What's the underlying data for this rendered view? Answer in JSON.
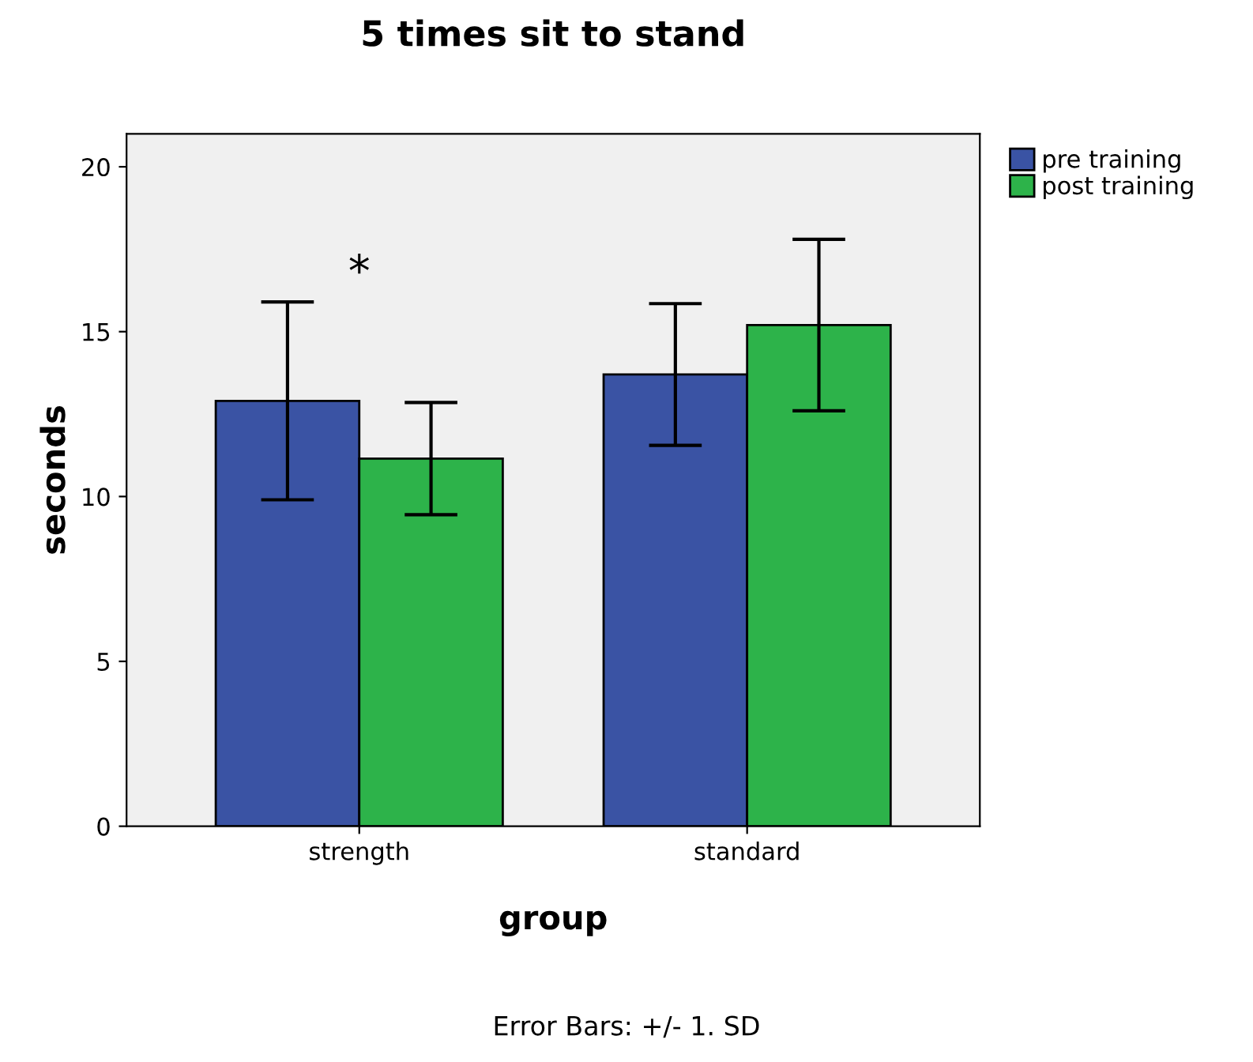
{
  "chart_data": {
    "type": "bar",
    "title": "5 times sit to stand",
    "xlabel": "group",
    "ylabel": "seconds",
    "categories": [
      "strength",
      "standard"
    ],
    "series": [
      {
        "name": "pre training",
        "color": "#3a53a4",
        "values": [
          12.9,
          13.7
        ],
        "errors": [
          3.0,
          2.15
        ]
      },
      {
        "name": "post training",
        "color": "#2db34a",
        "values": [
          11.15,
          15.2
        ],
        "errors": [
          1.7,
          2.6
        ]
      }
    ],
    "ylim": [
      0,
      21
    ],
    "yticks": [
      0,
      5,
      10,
      15,
      20
    ],
    "grid": false,
    "legend": "top right",
    "annotations": [
      "*",
      "Error Bars: +/- 1. SD"
    ]
  }
}
